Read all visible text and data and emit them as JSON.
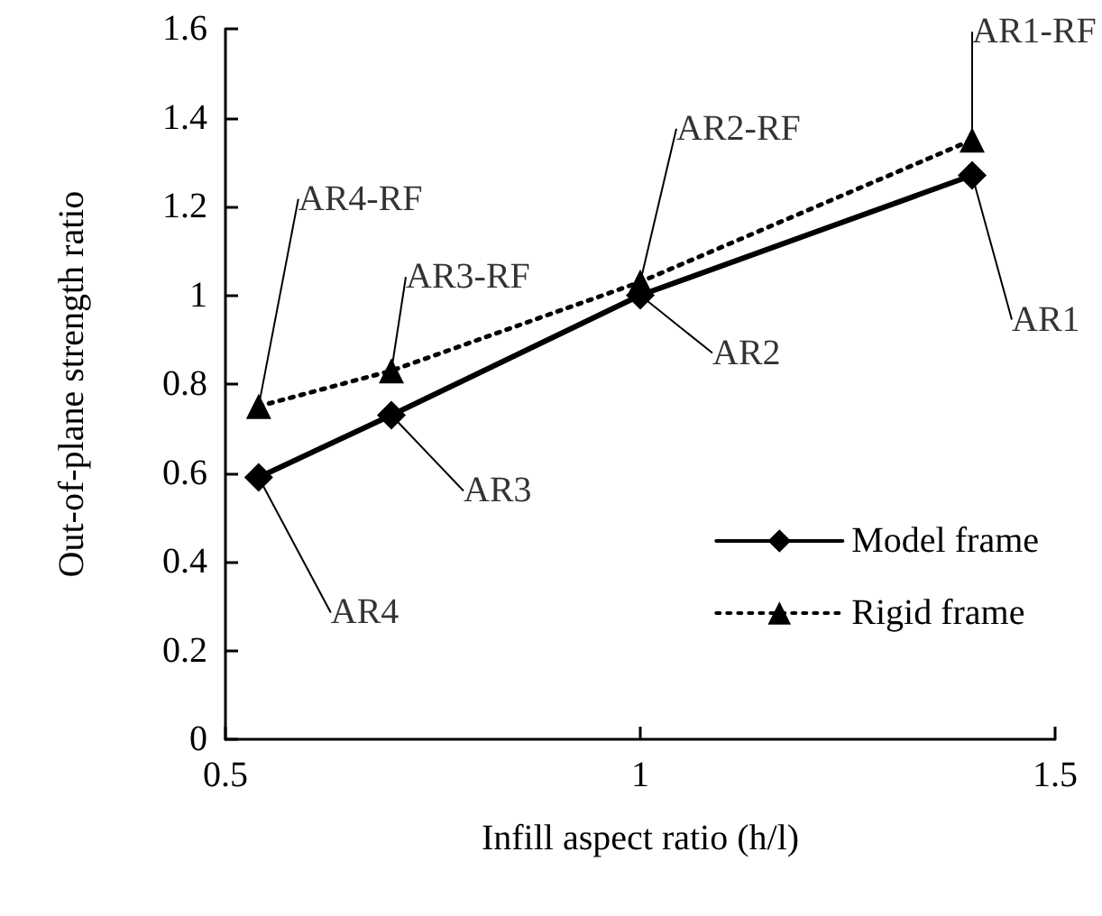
{
  "chart_data": {
    "type": "line",
    "xlabel": "Infill aspect ratio (h/l)",
    "ylabel": "Out-of-plane strength ratio",
    "x": [
      0.54,
      0.7,
      1.0,
      1.4
    ],
    "series": [
      {
        "name": "Model frame",
        "color": "#000000",
        "values": [
          0.59,
          0.73,
          1.0,
          1.27
        ],
        "marker": "diamond",
        "line_style": "solid"
      },
      {
        "name": "Rigid frame",
        "color": "#000000",
        "values": [
          0.75,
          0.83,
          1.03,
          1.35
        ],
        "marker": "triangle",
        "line_style": "dotted"
      }
    ],
    "xlim": [
      0.5,
      1.5
    ],
    "xticks": [
      0.5,
      1,
      1.5
    ],
    "ylim": [
      0,
      1.6
    ],
    "yticks": [
      0,
      0.2,
      0.4,
      0.6,
      0.8,
      1,
      1.2,
      1.4,
      1.6
    ],
    "grid": false,
    "legend": "right",
    "annotations": [
      {
        "text": "AR1-RF",
        "x": 1.4,
        "y": 1.35
      },
      {
        "text": "AR2-RF",
        "x": 1.0,
        "y": 1.03
      },
      {
        "text": "AR3-RF",
        "x": 0.7,
        "y": 0.83
      },
      {
        "text": "AR4-RF",
        "x": 0.54,
        "y": 0.75
      },
      {
        "text": "AR1",
        "x": 1.4,
        "y": 1.27
      },
      {
        "text": "AR2",
        "x": 1.0,
        "y": 1.0
      },
      {
        "text": "AR3",
        "x": 0.7,
        "y": 0.73
      },
      {
        "text": "AR4",
        "x": 0.54,
        "y": 0.59
      }
    ]
  }
}
